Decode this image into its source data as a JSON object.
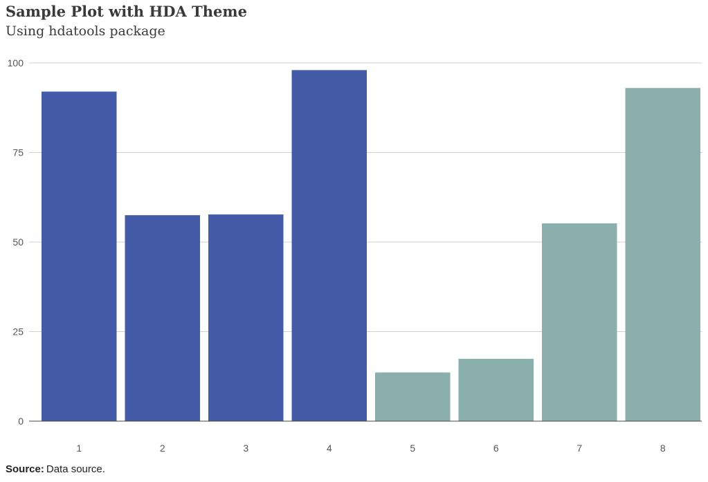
{
  "chart_data": {
    "type": "bar",
    "title": "Sample Plot with HDA Theme",
    "subtitle": "Using hdatools package",
    "categories": [
      "1",
      "2",
      "3",
      "4",
      "5",
      "6",
      "7",
      "8"
    ],
    "values": [
      92,
      57.5,
      57.7,
      98,
      13.6,
      17.4,
      55.2,
      93
    ],
    "bar_colors": [
      "#445ca8",
      "#445ca8",
      "#445ca8",
      "#445ca8",
      "#8aafad",
      "#8aafad",
      "#8aafad",
      "#8aafad"
    ],
    "xlabel": "",
    "ylabel": "",
    "ylim": [
      0,
      100
    ],
    "yticks": [
      0,
      25,
      50,
      75,
      100
    ],
    "grid": "horizontal",
    "legend": "none",
    "caption_label": "Source:",
    "caption_text": "Data source."
  }
}
